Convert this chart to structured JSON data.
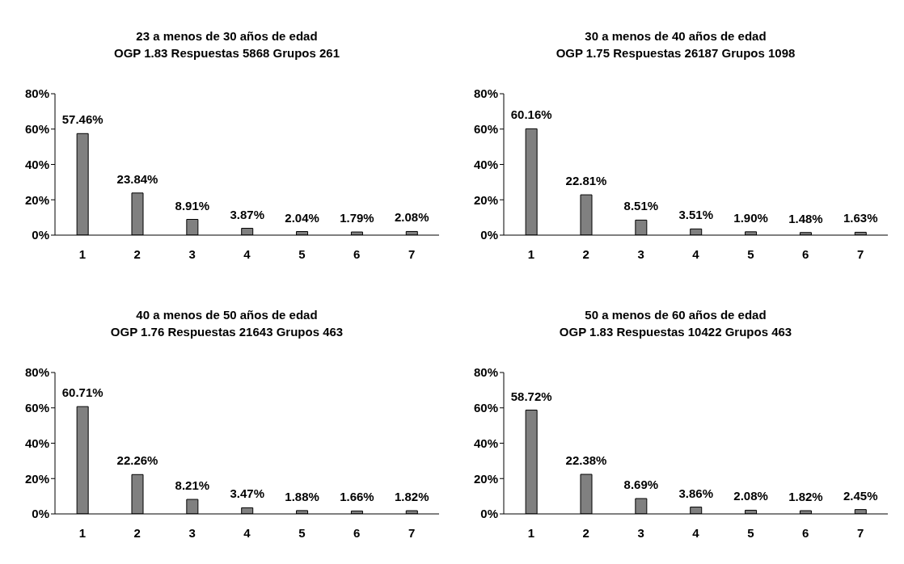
{
  "chart_data": [
    {
      "type": "bar",
      "title": "23 a menos de 30 años de edad",
      "subtitle": "OGP 1.83 Respuestas 5868 Grupos 261",
      "categories": [
        "1",
        "2",
        "3",
        "4",
        "5",
        "6",
        "7"
      ],
      "values": [
        57.46,
        23.84,
        8.91,
        3.87,
        2.04,
        1.79,
        2.08
      ],
      "value_labels": [
        "57.46%",
        "23.84%",
        "8.91%",
        "3.87%",
        "2.04%",
        "1.79%",
        "2.08%"
      ],
      "color": "#808080",
      "ylim": [
        0,
        80
      ],
      "yticks": [
        {
          "value": 0,
          "label": "0%"
        },
        {
          "value": 20,
          "label": "20%"
        },
        {
          "value": 40,
          "label": "40%"
        },
        {
          "value": 60,
          "label": "60%"
        },
        {
          "value": 80,
          "label": "80%"
        }
      ]
    },
    {
      "type": "bar",
      "title": "30 a menos de 40 años de edad",
      "subtitle": "OGP 1.75 Respuestas 26187 Grupos 1098",
      "categories": [
        "1",
        "2",
        "3",
        "4",
        "5",
        "6",
        "7"
      ],
      "values": [
        60.16,
        22.81,
        8.51,
        3.51,
        1.9,
        1.48,
        1.63
      ],
      "value_labels": [
        "60.16%",
        "22.81%",
        "8.51%",
        "3.51%",
        "1.90%",
        "1.48%",
        "1.63%"
      ],
      "color": "#808080",
      "ylim": [
        0,
        80
      ],
      "yticks": [
        {
          "value": 0,
          "label": "0%"
        },
        {
          "value": 20,
          "label": "20%"
        },
        {
          "value": 40,
          "label": "40%"
        },
        {
          "value": 60,
          "label": "60%"
        },
        {
          "value": 80,
          "label": "80%"
        }
      ]
    },
    {
      "type": "bar",
      "title": "40 a menos de 50 años de edad",
      "subtitle": "OGP 1.76 Respuestas 21643 Grupos 463",
      "categories": [
        "1",
        "2",
        "3",
        "4",
        "5",
        "6",
        "7"
      ],
      "values": [
        60.71,
        22.26,
        8.21,
        3.47,
        1.88,
        1.66,
        1.82
      ],
      "value_labels": [
        "60.71%",
        "22.26%",
        "8.21%",
        "3.47%",
        "1.88%",
        "1.66%",
        "1.82%"
      ],
      "color": "#808080",
      "ylim": [
        0,
        80
      ],
      "yticks": [
        {
          "value": 0,
          "label": "0%"
        },
        {
          "value": 20,
          "label": "20%"
        },
        {
          "value": 40,
          "label": "40%"
        },
        {
          "value": 60,
          "label": "60%"
        },
        {
          "value": 80,
          "label": "80%"
        }
      ]
    },
    {
      "type": "bar",
      "title": "50 a menos de 60 años de edad",
      "subtitle": "OGP 1.83 Respuestas 10422 Grupos 463",
      "categories": [
        "1",
        "2",
        "3",
        "4",
        "5",
        "6",
        "7"
      ],
      "values": [
        58.72,
        22.38,
        8.69,
        3.86,
        2.08,
        1.82,
        2.45
      ],
      "value_labels": [
        "58.72%",
        "22.38%",
        "8.69%",
        "3.86%",
        "2.08%",
        "1.82%",
        "2.45%"
      ],
      "color": "#808080",
      "ylim": [
        0,
        80
      ],
      "yticks": [
        {
          "value": 0,
          "label": "0%"
        },
        {
          "value": 20,
          "label": "20%"
        },
        {
          "value": 40,
          "label": "40%"
        },
        {
          "value": 60,
          "label": "60%"
        },
        {
          "value": 80,
          "label": "80%"
        }
      ]
    }
  ]
}
